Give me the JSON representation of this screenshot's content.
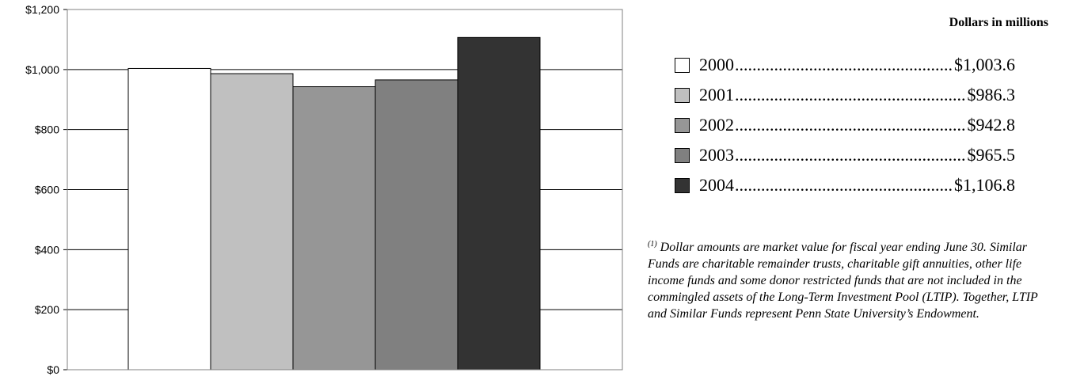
{
  "chart_data": {
    "type": "bar",
    "categories": [
      "2000",
      "2001",
      "2002",
      "2003",
      "2004"
    ],
    "values": [
      1003.6,
      986.3,
      942.8,
      965.5,
      1106.8
    ],
    "colors": [
      "#ffffff",
      "#c0c0c0",
      "#969696",
      "#808080",
      "#333333"
    ],
    "ylim": [
      0,
      1200
    ],
    "yticks": [
      0,
      200,
      400,
      600,
      800,
      1000,
      1200
    ],
    "ytick_labels": [
      "$0",
      "$200",
      "$400",
      "$600",
      "$800",
      "$1,000",
      "$1,200"
    ],
    "grid": true,
    "legend_position": "right",
    "units_label": "Dollars in millions"
  },
  "legend": [
    {
      "year": "2000",
      "value": "$1,003.6",
      "color": "#ffffff"
    },
    {
      "year": "2001",
      "value": "$986.3",
      "color": "#c0c0c0"
    },
    {
      "year": "2002",
      "value": "$942.8",
      "color": "#969696"
    },
    {
      "year": "2003",
      "value": "$965.5",
      "color": "#808080"
    },
    {
      "year": "2004",
      "value": "$1,106.8",
      "color": "#333333"
    }
  ],
  "footnote": {
    "marker": "(1)",
    "text": " Dollar amounts are market value for fiscal year ending June 30. Similar Funds are charitable remainder trusts, charitable gift annuities, other life income funds and some donor restricted funds that are not included in the commingled assets of the Long-Term Investment Pool (LTIP). Together, LTIP and Similar Funds represent Penn State University’s Endowment."
  }
}
